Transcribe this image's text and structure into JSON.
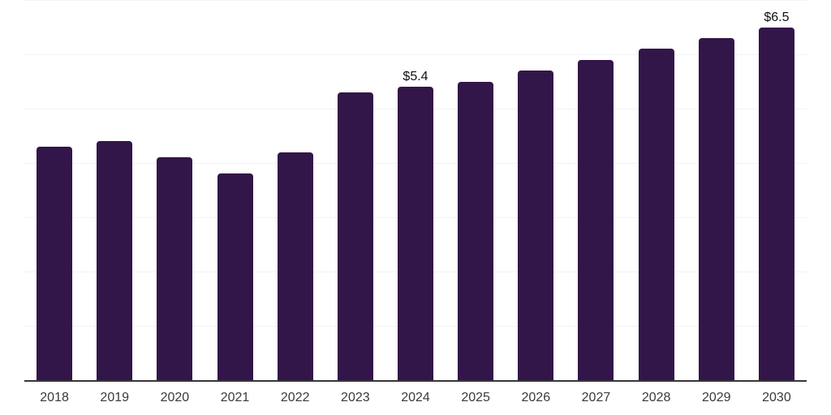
{
  "chart_data": {
    "type": "bar",
    "title": "",
    "xlabel": "",
    "ylabel": "",
    "categories": [
      "2018",
      "2019",
      "2020",
      "2021",
      "2022",
      "2023",
      "2024",
      "2025",
      "2026",
      "2027",
      "2028",
      "2029",
      "2030"
    ],
    "values": [
      4.3,
      4.4,
      4.1,
      3.8,
      4.2,
      5.3,
      5.4,
      5.5,
      5.7,
      5.9,
      6.1,
      6.3,
      6.5
    ],
    "data_labels": [
      "",
      "",
      "",
      "",
      "",
      "",
      "$5.4",
      "",
      "",
      "",
      "",
      "",
      "$6.5"
    ],
    "ylim": [
      0,
      7
    ],
    "grid": true,
    "gridline_values": [
      1,
      2,
      3,
      4,
      5,
      6,
      7
    ],
    "legend": "none",
    "colors": {
      "bar": "#331649",
      "gridline": "#f3f3f3",
      "axis_line": "#363636",
      "tick_label": "#3a3a3a",
      "data_label": "#111111",
      "background": "#ffffff"
    }
  }
}
